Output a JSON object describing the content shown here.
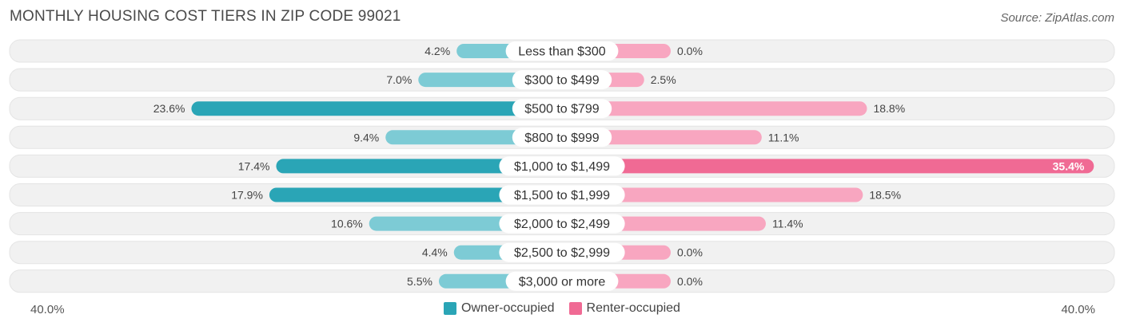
{
  "header": {
    "title": "MONTHLY HOUSING COST TIERS IN ZIP CODE 99021",
    "source": "Source: ZipAtlas.com"
  },
  "colors": {
    "owner_dark": "#2aa5b6",
    "owner_light": "#7dcbd5",
    "renter_dark": "#f06a94",
    "renter_light": "#f8a6c0",
    "row_bg": "#f1f1f1"
  },
  "axis": {
    "left_label": "40.0%",
    "right_label": "40.0%"
  },
  "legend": {
    "owner_label": "Owner-occupied",
    "renter_label": "Renter-occupied"
  },
  "chart_data": {
    "type": "bar",
    "orientation": "diverging-horizontal",
    "xlim": [
      -40,
      40
    ],
    "categories": [
      "Less than $300",
      "$300 to $499",
      "$500 to $799",
      "$800 to $999",
      "$1,000 to $1,499",
      "$1,500 to $1,999",
      "$2,000 to $2,499",
      "$2,500 to $2,999",
      "$3,000 or more"
    ],
    "series": [
      {
        "name": "Owner-occupied",
        "values": [
          4.2,
          7.0,
          23.6,
          9.4,
          17.4,
          17.9,
          10.6,
          4.4,
          5.5
        ],
        "labels": [
          "4.2%",
          "7.0%",
          "23.6%",
          "9.4%",
          "17.4%",
          "17.9%",
          "10.6%",
          "4.4%",
          "5.5%"
        ]
      },
      {
        "name": "Renter-occupied",
        "values": [
          0.0,
          2.5,
          18.8,
          11.1,
          35.4,
          18.5,
          11.4,
          0.0,
          0.0
        ],
        "labels": [
          "0.0%",
          "2.5%",
          "18.8%",
          "11.1%",
          "35.4%",
          "18.5%",
          "11.4%",
          "0.0%",
          "0.0%"
        ]
      }
    ]
  }
}
